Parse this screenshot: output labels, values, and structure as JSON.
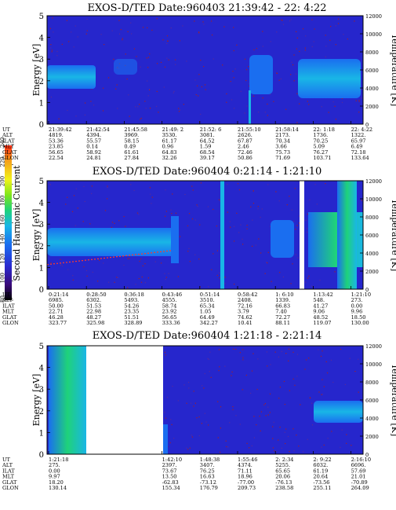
{
  "figure": {
    "colorbar": {
      "label": "Second Harmonic Current",
      "ticks": [
        "80",
        "100",
        "120",
        "140",
        "160",
        "180",
        "200",
        "220",
        "240"
      ],
      "colors": [
        "#000000",
        "#3a0a7a",
        "#2a2acf",
        "#1a6ef0",
        "#19b6e6",
        "#1fd27a",
        "#7fe61c",
        "#f2f21a",
        "#f5a01a",
        "#ff2a14"
      ]
    }
  },
  "chart_data": [
    {
      "type": "heatmap",
      "title": "EXOS-D/TED   Date:960403  21:39:42 - 22: 4:22",
      "ylabel": "Energy [eV]",
      "y2label": "Temperature [K]",
      "ylim": [
        0,
        5
      ],
      "y_ticks": [
        "0",
        "1",
        "2",
        "3",
        "4",
        "5"
      ],
      "y2lim": [
        0,
        12000
      ],
      "y2_ticks": [
        "0",
        "2000",
        "4000",
        "6000",
        "8000",
        "10000",
        "12000"
      ],
      "orbit_table": {
        "row_labels": [
          "UT",
          "ALT",
          "ILAT",
          "MLT",
          "GLAT",
          "GLON"
        ],
        "columns": [
          [
            "21:39:42",
            "4819.",
            "53.36",
            "23.85",
            "56.65",
            "22.54"
          ],
          [
            "21:42:54",
            "4394.",
            "55.57",
            "0.14",
            "58.92",
            "24.81"
          ],
          [
            "21:45:58",
            "3969.",
            "58.15",
            "0.49",
            "61.61",
            "27.84"
          ],
          [
            "21:49: 2",
            "3530.",
            "61.17",
            "0.96",
            "64.83",
            "32.26"
          ],
          [
            "21:52: 6",
            "3081.",
            "64.52",
            "1.59",
            "68.54",
            "39.17"
          ],
          [
            "21:55:10",
            "2626.",
            "67.87",
            "2.46",
            "72.46",
            "50.86"
          ],
          [
            "21:58:14",
            "2173.",
            "70.34",
            "3.66",
            "75.73",
            "71.69"
          ],
          [
            "22: 1:18",
            "1736.",
            "70.25",
            "5.09",
            "76.27",
            "103.71"
          ],
          [
            "22: 4:22",
            "1322.",
            "65.97",
            "6.49",
            "72.18",
            "133.64"
          ]
        ]
      }
    },
    {
      "type": "heatmap",
      "title": "EXOS-D/TED   Date:960404   0:21:14 - 1:21:10",
      "ylabel": "Energy [eV]",
      "y2label": "Temperature [K]",
      "ylim": [
        0,
        5
      ],
      "y_ticks": [
        "0",
        "1",
        "2",
        "3",
        "4",
        "5"
      ],
      "y2lim": [
        0,
        12000
      ],
      "y2_ticks": [
        "0",
        "2000",
        "4000",
        "6000",
        "8000",
        "10000",
        "12000"
      ],
      "orbit_table": {
        "row_labels": [
          "UT",
          "ALT",
          "ILAT",
          "MLT",
          "GLAT",
          "GLON"
        ],
        "columns": [
          [
            "0:21:14",
            "6985.",
            "50.00",
            "22.71",
            "46.28",
            "323.77"
          ],
          [
            "0:28:50",
            "6302.",
            "51.53",
            "22.98",
            "48.27",
            "325.98"
          ],
          [
            "0:36:18",
            "5493.",
            "54.26",
            "23.35",
            "51.51",
            "328.89"
          ],
          [
            "0:43:46",
            "4555.",
            "58.74",
            "23.92",
            "56.65",
            "333.36"
          ],
          [
            "0:51:14",
            "3510.",
            "65.34",
            "1.05",
            "64.49",
            "342.27"
          ],
          [
            "0:58:42",
            "2408.",
            "72.16",
            "3.79",
            "74.62",
            "10.41"
          ],
          [
            "1: 6:10",
            "1339.",
            "66.83",
            "7.40",
            "72.27",
            "88.11"
          ],
          [
            "1:13:42",
            "548.",
            "41.27",
            "9.06",
            "48.52",
            "119.07"
          ],
          [
            "1:21:10",
            "273.",
            "0.00",
            "9.96",
            "18.50",
            "130.00"
          ]
        ]
      }
    },
    {
      "type": "heatmap",
      "title": "EXOS-D/TED   Date:960404   1:21:18 - 2:21:14",
      "ylabel": "Energy [eV]",
      "y2label": "Temperature [K]",
      "ylim": [
        0,
        5
      ],
      "y_ticks": [
        "0",
        "1",
        "2",
        "3",
        "4",
        "5"
      ],
      "y2lim": [
        0,
        12000
      ],
      "y2_ticks": [
        "0",
        "2000",
        "4000",
        "6000",
        "8000",
        "10000",
        "12000"
      ],
      "orbit_table": {
        "row_labels": [
          "UT",
          "ALT",
          "ILAT",
          "MLT",
          "GLAT",
          "GLON"
        ],
        "columns": [
          [
            "1:21:18",
            "275.",
            "0.00",
            "9.97",
            "18.20",
            "130.14"
          ],
          [
            "",
            "",
            "",
            "",
            "",
            ""
          ],
          [
            "",
            "",
            "",
            "",
            "",
            ""
          ],
          [
            "1:42:10",
            "2397.",
            "73.67",
            "13.50",
            "-62.83",
            "155.34"
          ],
          [
            "1:48:38",
            "3407.",
            "76.25",
            "16.63",
            "-73.12",
            "176.79"
          ],
          [
            "1:55:46",
            "4374.",
            "71.11",
            "18.96",
            "-77.00",
            "209.73"
          ],
          [
            "2: 2:34",
            "5255.",
            "65.65",
            "20.06",
            "-76.13",
            "238.58"
          ],
          [
            "2: 9:22",
            "6032.",
            "61.19",
            "20.64",
            "-73.56",
            "255.11"
          ],
          [
            "2:16:10",
            "6696.",
            "57.69",
            "21.01",
            "-70.89",
            "264.09"
          ]
        ]
      }
    }
  ]
}
